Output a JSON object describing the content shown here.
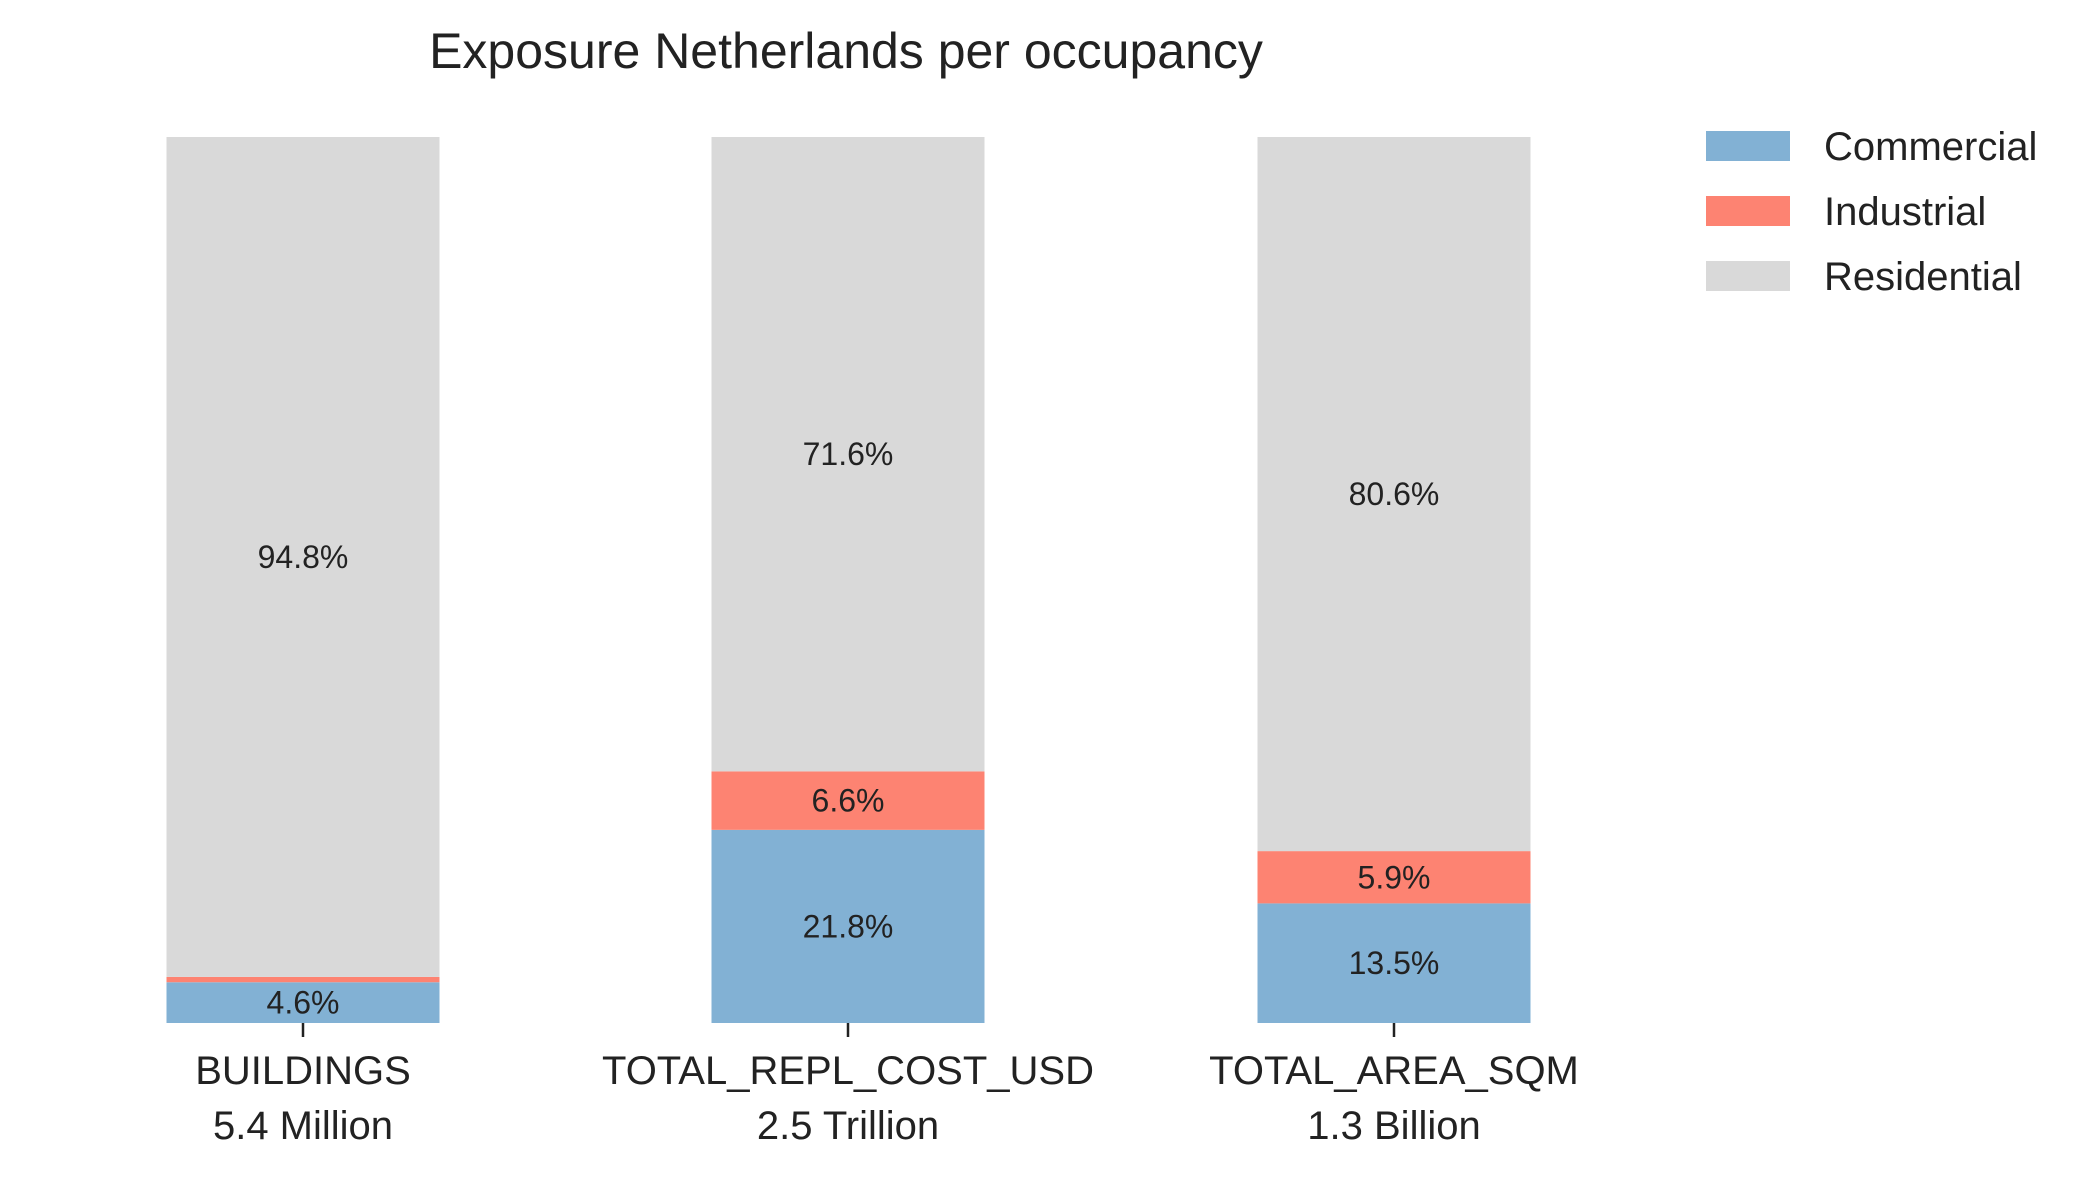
{
  "chart_data": {
    "type": "bar",
    "stacked": true,
    "normalized_percent": true,
    "title": "Exposure Netherlands per occupancy",
    "xlabel": "",
    "ylabel": "",
    "ylim": [
      0,
      100
    ],
    "categories": [
      "BUILDINGS\n5.4 Million",
      "TOTAL_REPL_COST_USD\n2.5 Trillion",
      "TOTAL_AREA_SQM\n1.3 Billion"
    ],
    "series": [
      {
        "name": "Commercial",
        "color": "#82b1d4",
        "values": [
          4.6,
          21.8,
          13.5
        ],
        "labels": [
          "4.6%",
          "21.8%",
          "13.5%"
        ]
      },
      {
        "name": "Industrial",
        "color": "#fd8372",
        "values": [
          0.6,
          6.6,
          5.9
        ],
        "labels": [
          "",
          "6.6%",
          "5.9%"
        ]
      },
      {
        "name": "Residential",
        "color": "#d9d9d9",
        "values": [
          94.8,
          71.6,
          80.6
        ],
        "labels": [
          "94.8%",
          "71.6%",
          "80.6%"
        ]
      }
    ],
    "legend": {
      "placement": "top-right outside",
      "entries": [
        "Commercial",
        "Industrial",
        "Residential"
      ]
    },
    "grid": false,
    "y_axis_visible": false
  }
}
